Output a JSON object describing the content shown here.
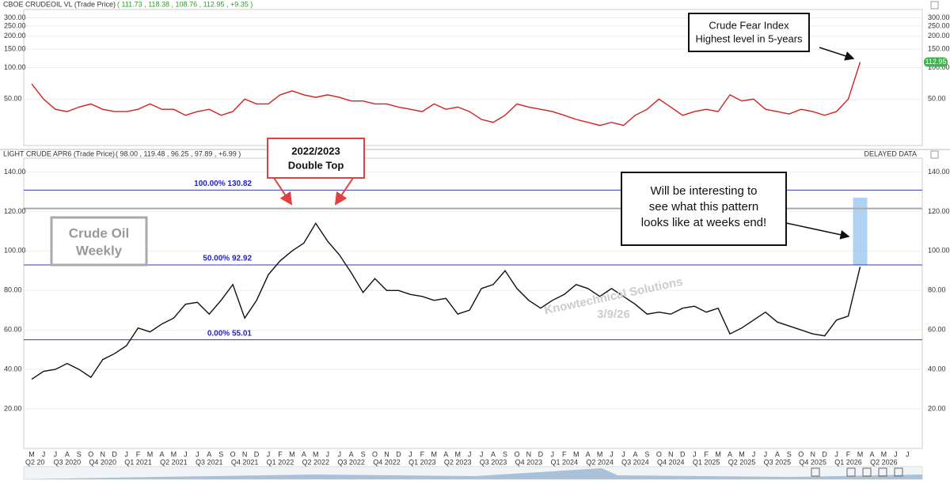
{
  "chart_data": [
    {
      "type": "line",
      "title": "CBOE CRUDEOIL VL (Trade Price)",
      "subtitle": "( 111.73 , 118.38 , 108.76 , 112.95 , +9.35 )",
      "log_scale": true,
      "color": "#d42020",
      "ylim": [
        18,
        360
      ],
      "yticks": [
        {
          "value": 300,
          "label": "300.00"
        },
        {
          "value": 250,
          "label": "250.00"
        },
        {
          "value": 200,
          "label": "200.00"
        },
        {
          "value": 150,
          "label": "150.00"
        },
        {
          "value": 100,
          "label": "100.00"
        },
        {
          "value": 50,
          "label": "50.00"
        }
      ],
      "last_price": {
        "value": 112.95,
        "label": "112.95"
      },
      "annotation": [
        "Crude Fear Index",
        "Highest level in 5-years"
      ],
      "categories": [
        "M",
        "J",
        "J",
        "A",
        "S",
        "O",
        "N",
        "D",
        "J",
        "F",
        "M",
        "A",
        "M",
        "J",
        "J",
        "A",
        "S",
        "O",
        "N",
        "D",
        "J",
        "F",
        "M",
        "A",
        "M",
        "J",
        "J",
        "A",
        "S",
        "O",
        "N",
        "D",
        "J",
        "F",
        "M",
        "A",
        "M",
        "J",
        "J",
        "A",
        "S",
        "O",
        "N",
        "D",
        "J",
        "F",
        "M",
        "A",
        "M",
        "J",
        "J",
        "A",
        "S",
        "O",
        "N",
        "D",
        "J",
        "F",
        "M",
        "A",
        "M",
        "J",
        "J",
        "A",
        "S",
        "O",
        "N",
        "D",
        "J",
        "F",
        "M",
        "A",
        "M",
        "J",
        "J"
      ],
      "values": [
        70,
        50,
        40,
        38,
        42,
        45,
        40,
        38,
        38,
        40,
        45,
        40,
        40,
        35,
        38,
        40,
        35,
        38,
        50,
        45,
        45,
        55,
        60,
        55,
        52,
        55,
        52,
        48,
        48,
        45,
        45,
        42,
        40,
        38,
        45,
        40,
        42,
        38,
        32,
        30,
        35,
        45,
        42,
        40,
        38,
        35,
        32,
        30,
        28,
        30,
        28,
        35,
        40,
        50,
        42,
        35,
        38,
        40,
        38,
        55,
        48,
        50,
        40,
        38,
        36,
        40,
        38,
        35,
        38,
        50,
        112.95,
        null,
        null,
        null,
        null
      ]
    },
    {
      "type": "line",
      "title": "LIGHT CRUDE APR6 (Trade Price)",
      "subtitle": "( 98.00 , 119.48 , 96.25 , 97.89 , +6.99 )",
      "note": "DELAYED DATA",
      "color": "#111111",
      "ylim": [
        0,
        147
      ],
      "yticks": [
        {
          "value": 20,
          "label": "20.00"
        },
        {
          "value": 40,
          "label": "40.00"
        },
        {
          "value": 60,
          "label": "60.00"
        },
        {
          "value": 80,
          "label": "80.00"
        },
        {
          "value": 100,
          "label": "100.00"
        },
        {
          "value": 120,
          "label": "120.00"
        },
        {
          "value": 140,
          "label": "140.00"
        }
      ],
      "fib_levels": [
        {
          "value": 130.82,
          "label": "100.00% 130.82"
        },
        {
          "value": 92.92,
          "label": "50.00% 92.92"
        },
        {
          "value": 55.01,
          "label": "0.00% 55.01"
        }
      ],
      "resistance": 121.5,
      "highlight_range": [
        92.92,
        127
      ],
      "annotations": {
        "double_top": [
          "2022/2023",
          "Double Top"
        ],
        "pattern": [
          "Will be interesting to",
          "see what this pattern",
          "looks like at weeks end!"
        ],
        "label": [
          "Crude Oil",
          "Weekly"
        ],
        "watermark": [
          "Knowtechnical Solutions",
          "3/9/26"
        ]
      },
      "categories": [
        "M",
        "J",
        "J",
        "A",
        "S",
        "O",
        "N",
        "D",
        "J",
        "F",
        "M",
        "A",
        "M",
        "J",
        "J",
        "A",
        "S",
        "O",
        "N",
        "D",
        "J",
        "F",
        "M",
        "A",
        "M",
        "J",
        "J",
        "A",
        "S",
        "O",
        "N",
        "D",
        "J",
        "F",
        "M",
        "A",
        "M",
        "J",
        "J",
        "A",
        "S",
        "O",
        "N",
        "D",
        "J",
        "F",
        "M",
        "A",
        "M",
        "J",
        "J",
        "A",
        "S",
        "O",
        "N",
        "D",
        "J",
        "F",
        "M",
        "A",
        "M",
        "J",
        "J",
        "A",
        "S",
        "O",
        "N",
        "D",
        "J",
        "F",
        "M",
        "A",
        "M",
        "J",
        "J"
      ],
      "quarters": [
        "Q2 20",
        "Q3 2020",
        "Q4 2020",
        "Q1 2021",
        "Q2 2021",
        "Q3 2021",
        "Q4 2021",
        "Q1 2022",
        "Q2 2022",
        "Q3 2022",
        "Q4 2022",
        "Q1 2023",
        "Q2 2023",
        "Q3 2023",
        "Q4 2023",
        "Q1 2024",
        "Q2 2024",
        "Q3 2024",
        "Q4 2024",
        "Q1 2025",
        "Q2 2025",
        "Q3 2025",
        "Q4 2025",
        "Q1 2026",
        "Q2 2026"
      ],
      "values": [
        35,
        39,
        40,
        43,
        40,
        36,
        45,
        48,
        52,
        61,
        59,
        63,
        66,
        73,
        74,
        68,
        75,
        83,
        66,
        75,
        88,
        95,
        100,
        104,
        114,
        105,
        98,
        89,
        79,
        86,
        80,
        80,
        78,
        77,
        75,
        76,
        68,
        70,
        81,
        83,
        90,
        81,
        75,
        71,
        75,
        78,
        83,
        81,
        77,
        81,
        77,
        73,
        68,
        69,
        68,
        71,
        72,
        69,
        71,
        58,
        61,
        65,
        69,
        64,
        62,
        60,
        58,
        57,
        65,
        67,
        92,
        null,
        null,
        null,
        null
      ]
    }
  ]
}
